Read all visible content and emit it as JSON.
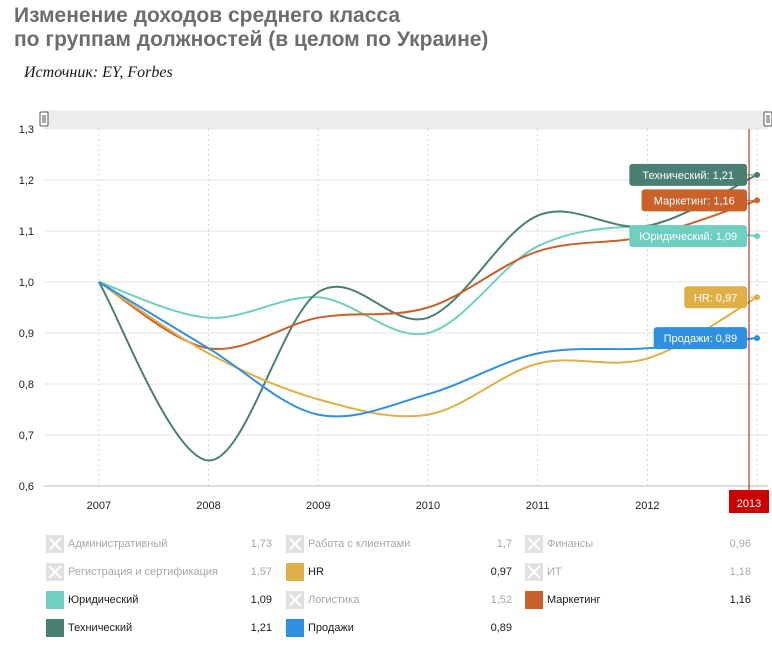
{
  "header": {
    "title_line1": "Изменение доходов среднего класса",
    "title_line2": "по группам должностей (в целом по Украине)",
    "source": "Источник: EY, Forbes"
  },
  "colors": {
    "yuridicheskiy": "#6fcfc0",
    "tekhnicheskiy": "#4a7f73",
    "marketing": "#c8622a",
    "hr": "#e0b048",
    "prodazhi": "#2f8fe0",
    "cursor_line": "#a01010",
    "cursor_label": "#cc0000"
  },
  "chart_data": {
    "type": "line",
    "x": [
      2007,
      2008,
      2009,
      2010,
      2011,
      2012,
      2013
    ],
    "xlim": [
      2006.5,
      2013.1
    ],
    "ylim": [
      0.6,
      1.3
    ],
    "yticks": [
      "0,6",
      "0,7",
      "0,8",
      "0,9",
      "1,0",
      "1,1",
      "1,2",
      "1,3"
    ],
    "xtick_labels": [
      "2007",
      "2008",
      "2009",
      "2010",
      "2011",
      "2012",
      "2013"
    ],
    "grid": true,
    "highlighted_x": "2013",
    "series": [
      {
        "name": "Юридический",
        "color": "#6fcfc0",
        "values": [
          1.0,
          0.93,
          0.97,
          0.9,
          1.07,
          1.11,
          1.09
        ],
        "tooltip": "Юридический: 1,09"
      },
      {
        "name": "Технический",
        "color": "#4a7f73",
        "values": [
          1.0,
          0.65,
          0.98,
          0.93,
          1.13,
          1.11,
          1.21
        ],
        "tooltip": "Технический: 1,21"
      },
      {
        "name": "Маркетинг",
        "color": "#c8622a",
        "values": [
          1.0,
          0.87,
          0.93,
          0.95,
          1.06,
          1.09,
          1.16
        ],
        "tooltip": "Маркетинг: 1,16"
      },
      {
        "name": "HR",
        "color": "#e0b048",
        "values": [
          1.0,
          0.86,
          0.77,
          0.74,
          0.84,
          0.85,
          0.97
        ],
        "tooltip": "HR: 0,97"
      },
      {
        "name": "Продажи",
        "color": "#2f8fe0",
        "values": [
          1.0,
          0.87,
          0.74,
          0.78,
          0.86,
          0.87,
          0.89
        ],
        "tooltip": "Продажи: 0,89"
      }
    ],
    "legend": [
      {
        "name": "Административный",
        "value": "1,73",
        "active": false
      },
      {
        "name": "Работа с клиентами",
        "value": "1,7",
        "active": false
      },
      {
        "name": "Финансы",
        "value": "0,96",
        "active": false
      },
      {
        "name": "Регистрация и сертификация",
        "value": "1,57",
        "active": false
      },
      {
        "name": "HR",
        "value": "0,97",
        "active": true,
        "color": "#e0b048"
      },
      {
        "name": "ИТ",
        "value": "1,18",
        "active": false
      },
      {
        "name": "Юридический",
        "value": "1,09",
        "active": true,
        "color": "#6fcfc0"
      },
      {
        "name": "Логистика",
        "value": "1,52",
        "active": false
      },
      {
        "name": "Маркетинг",
        "value": "1,16",
        "active": true,
        "color": "#c8622a"
      },
      {
        "name": "Технический",
        "value": "1,21",
        "active": true,
        "color": "#4a7f73"
      },
      {
        "name": "Продажи",
        "value": "0,89",
        "active": true,
        "color": "#2f8fe0"
      }
    ]
  }
}
